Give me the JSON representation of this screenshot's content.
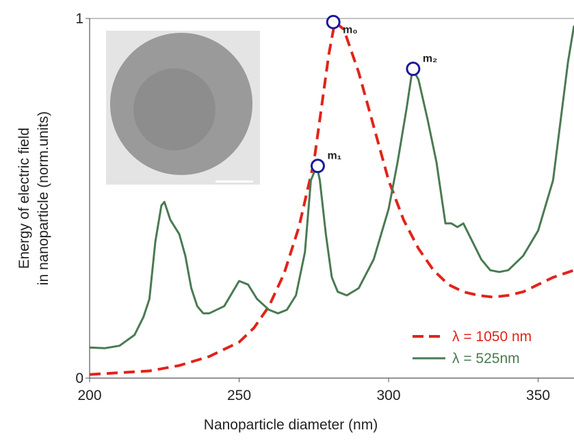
{
  "chart_data": {
    "type": "line",
    "xlabel": "Nanoparticle diameter (nm)",
    "ylabel": [
      "Energy of electric field",
      "in nanoparticle (norm.units)"
    ],
    "xlim": [
      200,
      362
    ],
    "xticks": [
      200,
      250,
      300,
      350
    ],
    "ylim": [
      0,
      1
    ],
    "yticks": [
      0,
      1
    ],
    "legend": "lower right",
    "series": [
      {
        "name": "λ = 1050 nm",
        "color": "#e2231a",
        "dashed": true,
        "x": [
          200,
          210,
          220,
          230,
          240,
          250,
          255,
          260,
          265,
          270,
          275,
          278,
          280,
          282,
          285,
          290,
          295,
          300,
          305,
          310,
          315,
          320,
          325,
          330,
          335,
          340,
          345,
          350,
          355,
          362
        ],
        "values": [
          0.01,
          0.015,
          0.02,
          0.035,
          0.06,
          0.1,
          0.14,
          0.2,
          0.29,
          0.42,
          0.6,
          0.78,
          0.9,
          0.99,
          0.97,
          0.85,
          0.7,
          0.55,
          0.44,
          0.36,
          0.3,
          0.26,
          0.24,
          0.23,
          0.225,
          0.23,
          0.24,
          0.26,
          0.28,
          0.3
        ]
      },
      {
        "name": "λ = 525nm",
        "color": "#4a7a52",
        "dashed": false,
        "x": [
          200,
          205,
          210,
          215,
          218,
          220,
          222,
          224,
          225,
          227,
          230,
          232,
          234,
          236,
          238,
          240,
          245,
          250,
          253,
          256,
          260,
          263,
          266,
          269,
          272,
          274,
          276,
          277,
          279,
          281,
          283,
          286,
          290,
          295,
          300,
          303,
          306,
          308,
          310,
          313,
          316,
          319,
          321,
          323,
          325,
          328,
          331,
          334,
          337,
          340,
          345,
          350,
          355,
          360,
          362
        ],
        "values": [
          0.085,
          0.083,
          0.09,
          0.12,
          0.17,
          0.22,
          0.38,
          0.48,
          0.49,
          0.44,
          0.4,
          0.34,
          0.25,
          0.2,
          0.18,
          0.18,
          0.2,
          0.27,
          0.26,
          0.22,
          0.19,
          0.18,
          0.19,
          0.23,
          0.35,
          0.55,
          0.59,
          0.55,
          0.4,
          0.28,
          0.24,
          0.23,
          0.25,
          0.33,
          0.47,
          0.6,
          0.75,
          0.86,
          0.83,
          0.72,
          0.6,
          0.43,
          0.43,
          0.42,
          0.43,
          0.38,
          0.33,
          0.3,
          0.295,
          0.3,
          0.34,
          0.41,
          0.55,
          0.88,
          0.98
        ]
      }
    ],
    "annotations": [
      {
        "text": "m₀",
        "x": 281.5,
        "y": 0.99
      },
      {
        "text": "m₁",
        "x": 276.3,
        "y": 0.59
      },
      {
        "text": "m₂",
        "x": 308.2,
        "y": 0.86
      }
    ]
  }
}
